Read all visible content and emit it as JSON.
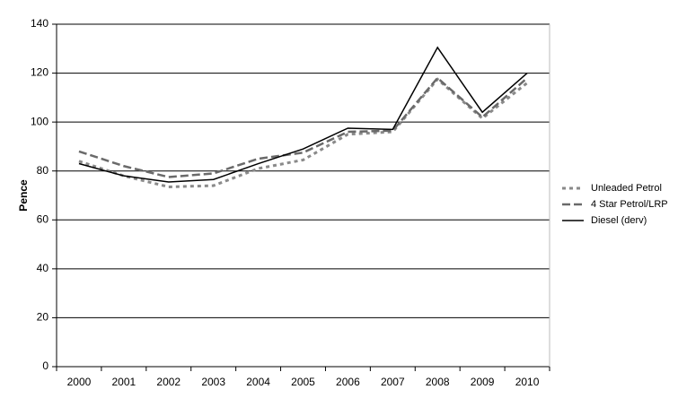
{
  "chart_data": {
    "type": "line",
    "y_label": "Pence",
    "categories": [
      "2000",
      "2001",
      "2002",
      "2003",
      "2004",
      "2005",
      "2006",
      "2007",
      "2008",
      "2009",
      "2010"
    ],
    "series": [
      {
        "name": "Unleaded Petrol",
        "color": "#8a8a8a",
        "line_style": "dotted",
        "values": [
          84,
          78,
          73.5,
          74,
          81,
          84.5,
          95,
          96,
          117.5,
          101.5,
          116
        ]
      },
      {
        "name": "4 Star Petrol/LRP",
        "color": "#6a6a6a",
        "line_style": "dashed",
        "values": [
          88,
          82,
          77.5,
          79,
          85,
          87.5,
          96,
          96.5,
          118,
          102,
          118
        ]
      },
      {
        "name": "Diesel (derv)",
        "color": "#000000",
        "line_style": "solid",
        "values": [
          83,
          78,
          75.5,
          76.5,
          83,
          89,
          97.5,
          97,
          130.5,
          104,
          120
        ]
      }
    ],
    "ylim": [
      0,
      140
    ],
    "yticks": [
      0,
      20,
      40,
      60,
      80,
      100,
      120,
      140
    ],
    "grid": true,
    "legend": "right"
  }
}
